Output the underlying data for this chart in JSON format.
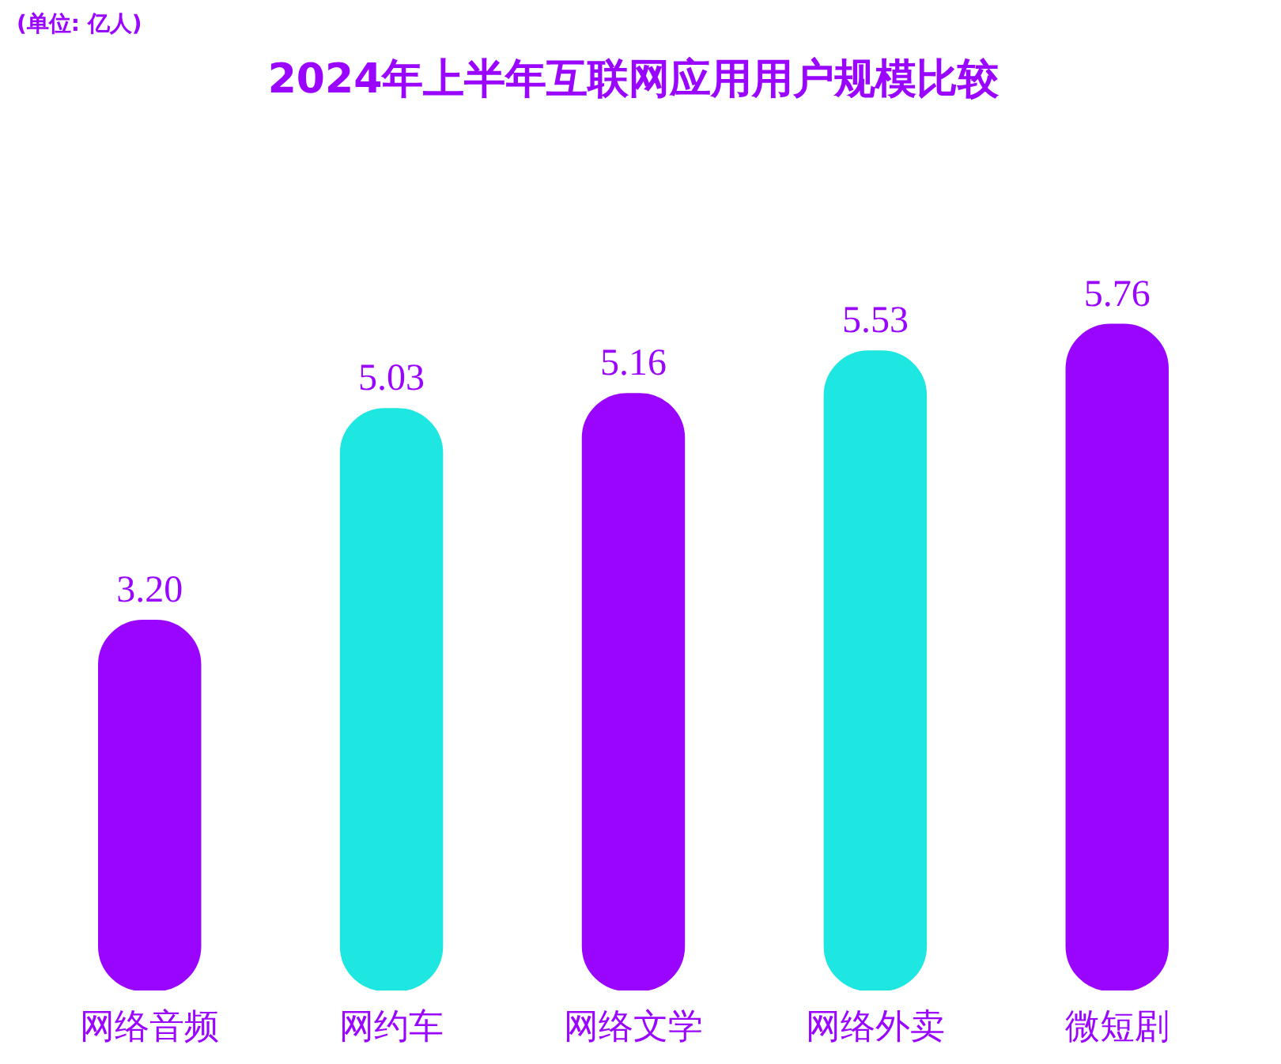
{
  "chart_data": {
    "type": "bar",
    "title": "2024年上半年互联网应用用户规模比较",
    "annotations": [
      "(单位: 亿人)"
    ],
    "categories": [
      "网络音频",
      "网约车",
      "网络文学",
      "网络外卖",
      "微短剧"
    ],
    "values": [
      3.2,
      5.03,
      5.16,
      5.53,
      5.76
    ],
    "colors": [
      "#9a05ff",
      "#1ee6e0",
      "#9a05ff",
      "#1ee6e0",
      "#9a05ff"
    ],
    "value_labels": [
      "3.20",
      "5.03",
      "5.16",
      "5.53",
      "5.76"
    ]
  }
}
